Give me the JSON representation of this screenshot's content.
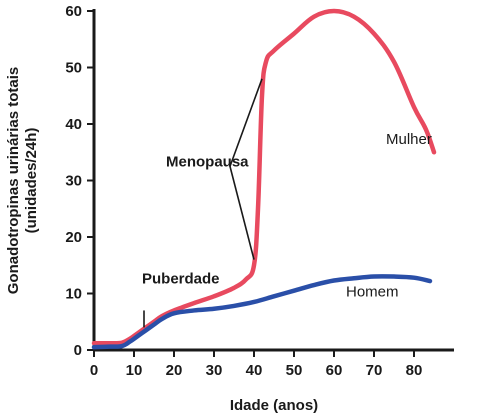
{
  "chart_data": {
    "type": "line",
    "xlabel": "Idade (anos)",
    "ylabel_lines": [
      "Gonadotropinas urinárias totais",
      "(unidades/24h)"
    ],
    "xlim": [
      0,
      90
    ],
    "ylim": [
      0,
      60
    ],
    "x_ticks": [
      0,
      10,
      20,
      30,
      40,
      50,
      60,
      70,
      80
    ],
    "y_ticks": [
      0,
      10,
      20,
      30,
      40,
      50,
      60
    ],
    "grid": false,
    "series": [
      {
        "name": "Mulher",
        "color": "#e84a5f",
        "x": [
          0,
          4,
          7,
          9,
          11,
          13,
          15,
          17,
          20,
          25,
          30,
          35,
          38,
          40,
          41,
          42,
          43,
          45,
          50,
          55,
          60,
          65,
          70,
          75,
          80,
          83,
          85
        ],
        "y": [
          1.2,
          1.2,
          1.3,
          2,
          3,
          4,
          5,
          6,
          7,
          8.3,
          9.5,
          11,
          12.5,
          15,
          25,
          45,
          51,
          53,
          56,
          59,
          60,
          59,
          56,
          51,
          43,
          39,
          35
        ]
      },
      {
        "name": "Homem",
        "color": "#2a4fa8",
        "x": [
          0,
          4,
          7,
          9,
          11,
          13,
          15,
          17,
          20,
          25,
          30,
          35,
          40,
          45,
          50,
          55,
          60,
          65,
          70,
          75,
          80,
          84
        ],
        "y": [
          0.5,
          0.6,
          0.7,
          1.5,
          2.5,
          3.5,
          4.5,
          5.5,
          6.5,
          7,
          7.3,
          7.8,
          8.5,
          9.5,
          10.5,
          11.5,
          12.3,
          12.7,
          13,
          13,
          12.8,
          12.2
        ]
      }
    ],
    "annotations": [
      {
        "text": "Menopausa",
        "x": 18,
        "y": 32.5,
        "bold": true
      },
      {
        "text": "Puberdade",
        "x": 12,
        "y": 11.8,
        "bold": true
      },
      {
        "text": "Mulher",
        "x": 73,
        "y": 36.5,
        "bold": false
      },
      {
        "text": "Homem",
        "x": 63,
        "y": 9.5,
        "bold": false
      }
    ],
    "pointers": [
      {
        "from": [
          34,
          32.5
        ],
        "to": [
          42,
          48
        ]
      },
      {
        "from": [
          34,
          32.5
        ],
        "to": [
          40,
          16
        ]
      },
      {
        "from": [
          12.5,
          7
        ],
        "to": [
          12.5,
          4
        ]
      }
    ]
  }
}
